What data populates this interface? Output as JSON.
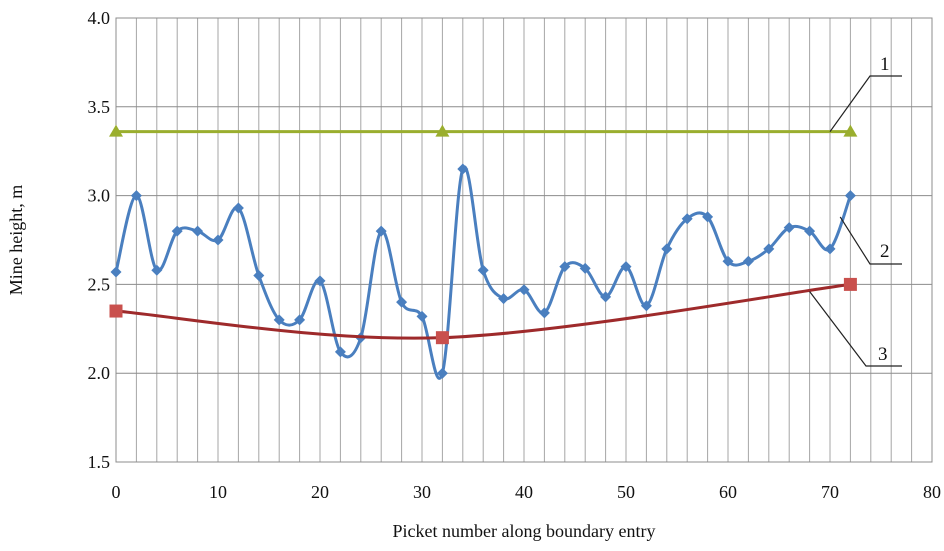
{
  "chart_data": {
    "type": "line",
    "xlabel": "Picket number along boundary entry",
    "ylabel": "Mine height, m",
    "xlim": [
      0,
      80
    ],
    "ylim": [
      1.5,
      4.0
    ],
    "x_ticks": [
      0,
      10,
      20,
      30,
      40,
      50,
      60,
      70,
      80
    ],
    "x_tick_labels": [
      "0",
      "10",
      "20",
      "30",
      "40",
      "50",
      "60",
      "70",
      "80"
    ],
    "y_ticks": [
      1.5,
      2.0,
      2.5,
      3.0,
      3.5,
      4.0
    ],
    "y_tick_labels": [
      "1.5",
      "2.0",
      "2.5",
      "3.0",
      "3.5",
      "4.0"
    ],
    "grid": true,
    "legend": "none",
    "series": [
      {
        "label": "1",
        "color": "#9aae2e",
        "marker": "triangle",
        "smooth": false,
        "x": [
          0,
          32,
          72
        ],
        "y": [
          3.36,
          3.36,
          3.36
        ]
      },
      {
        "label": "2",
        "color": "#4a7fbf",
        "marker": "diamond",
        "smooth": true,
        "x": [
          0,
          2,
          4,
          6,
          8,
          10,
          12,
          14,
          16,
          18,
          20,
          22,
          24,
          26,
          28,
          30,
          32,
          34,
          36,
          38,
          40,
          42,
          44,
          46,
          48,
          50,
          52,
          54,
          56,
          58,
          60,
          62,
          64,
          66,
          68,
          70,
          72
        ],
        "y": [
          2.57,
          3.0,
          2.58,
          2.8,
          2.8,
          2.75,
          2.93,
          2.55,
          2.3,
          2.3,
          2.52,
          2.12,
          2.2,
          2.8,
          2.4,
          2.32,
          2.0,
          3.15,
          2.58,
          2.42,
          2.47,
          2.34,
          2.6,
          2.59,
          2.43,
          2.6,
          2.38,
          2.7,
          2.87,
          2.88,
          2.63,
          2.63,
          2.7,
          2.82,
          2.8,
          2.7,
          3.0
        ]
      },
      {
        "label": "3",
        "color": "#9e2a2b",
        "marker": "square",
        "smooth": true,
        "x": [
          0,
          32,
          72
        ],
        "y": [
          2.35,
          2.2,
          2.5
        ]
      }
    ],
    "annotations": [
      {
        "text": "1",
        "points_to": {
          "x": 70,
          "y": 3.36
        }
      },
      {
        "text": "2",
        "points_to": {
          "x": 71,
          "y": 2.88
        }
      },
      {
        "text": "3",
        "points_to": {
          "x": 68,
          "y": 2.46
        }
      }
    ]
  }
}
